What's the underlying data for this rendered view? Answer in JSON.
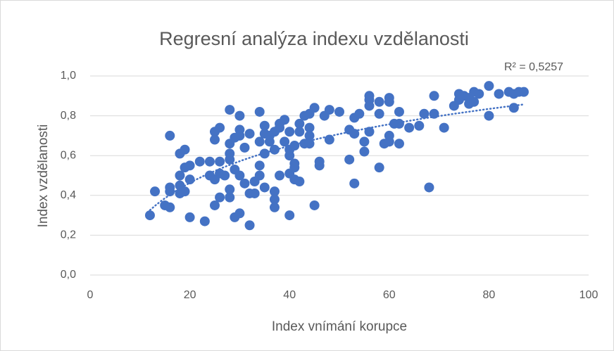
{
  "chart_data": {
    "type": "scatter",
    "title": "Regresní analýza indexu vzdělanosti",
    "xlabel": "Index vnímání korupce",
    "ylabel": "Index vzdělanosti",
    "annotation": "R² = 0,5257",
    "trendline": "logarithmic",
    "color": "#4472c4",
    "grid": true,
    "xlim": [
      0,
      100
    ],
    "xticks": [
      0,
      20,
      40,
      60,
      80,
      100
    ],
    "ylim": [
      0,
      1
    ],
    "yticks": [
      {
        "value": 0,
        "label": "0,0"
      },
      {
        "value": 0.2,
        "label": "0,2"
      },
      {
        "value": 0.4,
        "label": "0,4"
      },
      {
        "value": 0.6,
        "label": "0,6"
      },
      {
        "value": 0.8,
        "label": "0,8"
      },
      {
        "value": 1,
        "label": "1,0"
      }
    ],
    "x": [
      12,
      13,
      15,
      16,
      16,
      16,
      16,
      18,
      18,
      18,
      18,
      19,
      19,
      19,
      20,
      20,
      20,
      22,
      23,
      24,
      24,
      25,
      25,
      25,
      25,
      26,
      26,
      26,
      26,
      27,
      28,
      28,
      28,
      28,
      28,
      28,
      29,
      29,
      29,
      30,
      30,
      30,
      30,
      30,
      31,
      31,
      32,
      32,
      32,
      33,
      33,
      34,
      34,
      34,
      34,
      35,
      35,
      35,
      35,
      36,
      36,
      37,
      37,
      37,
      37,
      37,
      38,
      38,
      38,
      39,
      39,
      40,
      40,
      40,
      40,
      40,
      41,
      41,
      41,
      41,
      42,
      42,
      42,
      43,
      43,
      44,
      44,
      44,
      44,
      45,
      45,
      46,
      46,
      47,
      48,
      48,
      50,
      52,
      52,
      53,
      53,
      53,
      54,
      55,
      55,
      56,
      56,
      56,
      56,
      58,
      58,
      58,
      59,
      60,
      60,
      60,
      60,
      61,
      62,
      62,
      62,
      64,
      66,
      67,
      68,
      69,
      69,
      71,
      73,
      74,
      74,
      75,
      76,
      76,
      77,
      77,
      78,
      80,
      80,
      82,
      84,
      85,
      85,
      86,
      87
    ],
    "values": [
      0.3,
      0.42,
      0.35,
      0.34,
      0.7,
      0.42,
      0.44,
      0.41,
      0.45,
      0.5,
      0.61,
      0.63,
      0.54,
      0.42,
      0.29,
      0.48,
      0.55,
      0.57,
      0.27,
      0.5,
      0.57,
      0.35,
      0.48,
      0.68,
      0.72,
      0.74,
      0.57,
      0.51,
      0.39,
      0.5,
      0.83,
      0.66,
      0.61,
      0.58,
      0.43,
      0.39,
      0.29,
      0.53,
      0.69,
      0.31,
      0.8,
      0.73,
      0.7,
      0.5,
      0.46,
      0.64,
      0.25,
      0.41,
      0.71,
      0.41,
      0.47,
      0.82,
      0.67,
      0.55,
      0.5,
      0.75,
      0.71,
      0.61,
      0.44,
      0.7,
      0.67,
      0.34,
      0.38,
      0.42,
      0.63,
      0.72,
      0.5,
      0.74,
      0.76,
      0.78,
      0.67,
      0.3,
      0.51,
      0.6,
      0.63,
      0.72,
      0.48,
      0.54,
      0.56,
      0.65,
      0.47,
      0.72,
      0.76,
      0.66,
      0.8,
      0.66,
      0.7,
      0.74,
      0.81,
      0.35,
      0.84,
      0.55,
      0.57,
      0.8,
      0.68,
      0.83,
      0.82,
      0.58,
      0.73,
      0.46,
      0.71,
      0.79,
      0.81,
      0.62,
      0.67,
      0.72,
      0.85,
      0.88,
      0.9,
      0.54,
      0.81,
      0.87,
      0.66,
      0.67,
      0.7,
      0.87,
      0.89,
      0.76,
      0.66,
      0.76,
      0.82,
      0.74,
      0.75,
      0.81,
      0.44,
      0.81,
      0.9,
      0.74,
      0.85,
      0.88,
      0.91,
      0.9,
      0.86,
      0.89,
      0.87,
      0.92,
      0.91,
      0.8,
      0.95,
      0.91,
      0.92,
      0.84,
      0.91,
      0.92,
      0.92
    ]
  }
}
